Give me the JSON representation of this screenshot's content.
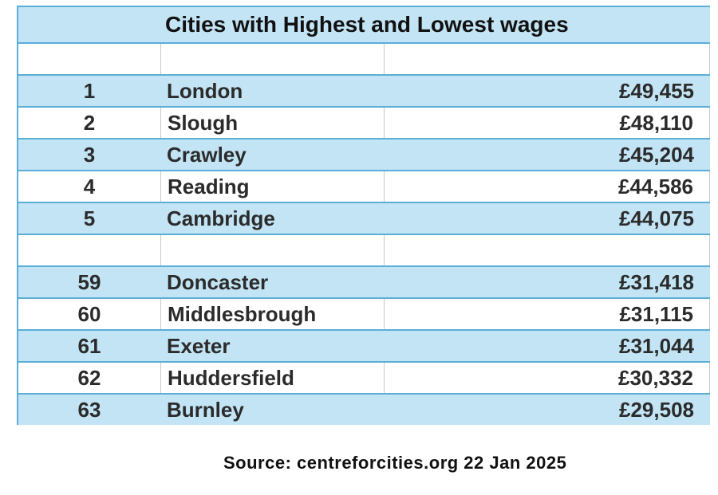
{
  "title": "Cities with Highest and Lowest wages",
  "rows": [
    {
      "rank": "",
      "city": "",
      "wage": ""
    },
    {
      "rank": "1",
      "city": "London",
      "wage": "£49,455"
    },
    {
      "rank": "2",
      "city": "Slough",
      "wage": "£48,110"
    },
    {
      "rank": "3",
      "city": "Crawley",
      "wage": "£45,204"
    },
    {
      "rank": "4",
      "city": "Reading",
      "wage": "£44,586"
    },
    {
      "rank": "5",
      "city": "Cambridge",
      "wage": "£44,075"
    },
    {
      "rank": "",
      "city": "",
      "wage": ""
    },
    {
      "rank": "59",
      "city": "Doncaster",
      "wage": "£31,418"
    },
    {
      "rank": "60",
      "city": "Middlesbrough",
      "wage": "£31,115"
    },
    {
      "rank": "61",
      "city": "Exeter",
      "wage": "£31,044"
    },
    {
      "rank": "62",
      "city": "Huddersfield",
      "wage": "£30,332"
    },
    {
      "rank": "63",
      "city": "Burnley",
      "wage": "£29,508"
    }
  ],
  "source": "Source: centreforcities.org 22 Jan 2025",
  "colors": {
    "row_blue": "#c3e4f4",
    "border_blue": "#5aaed8"
  }
}
